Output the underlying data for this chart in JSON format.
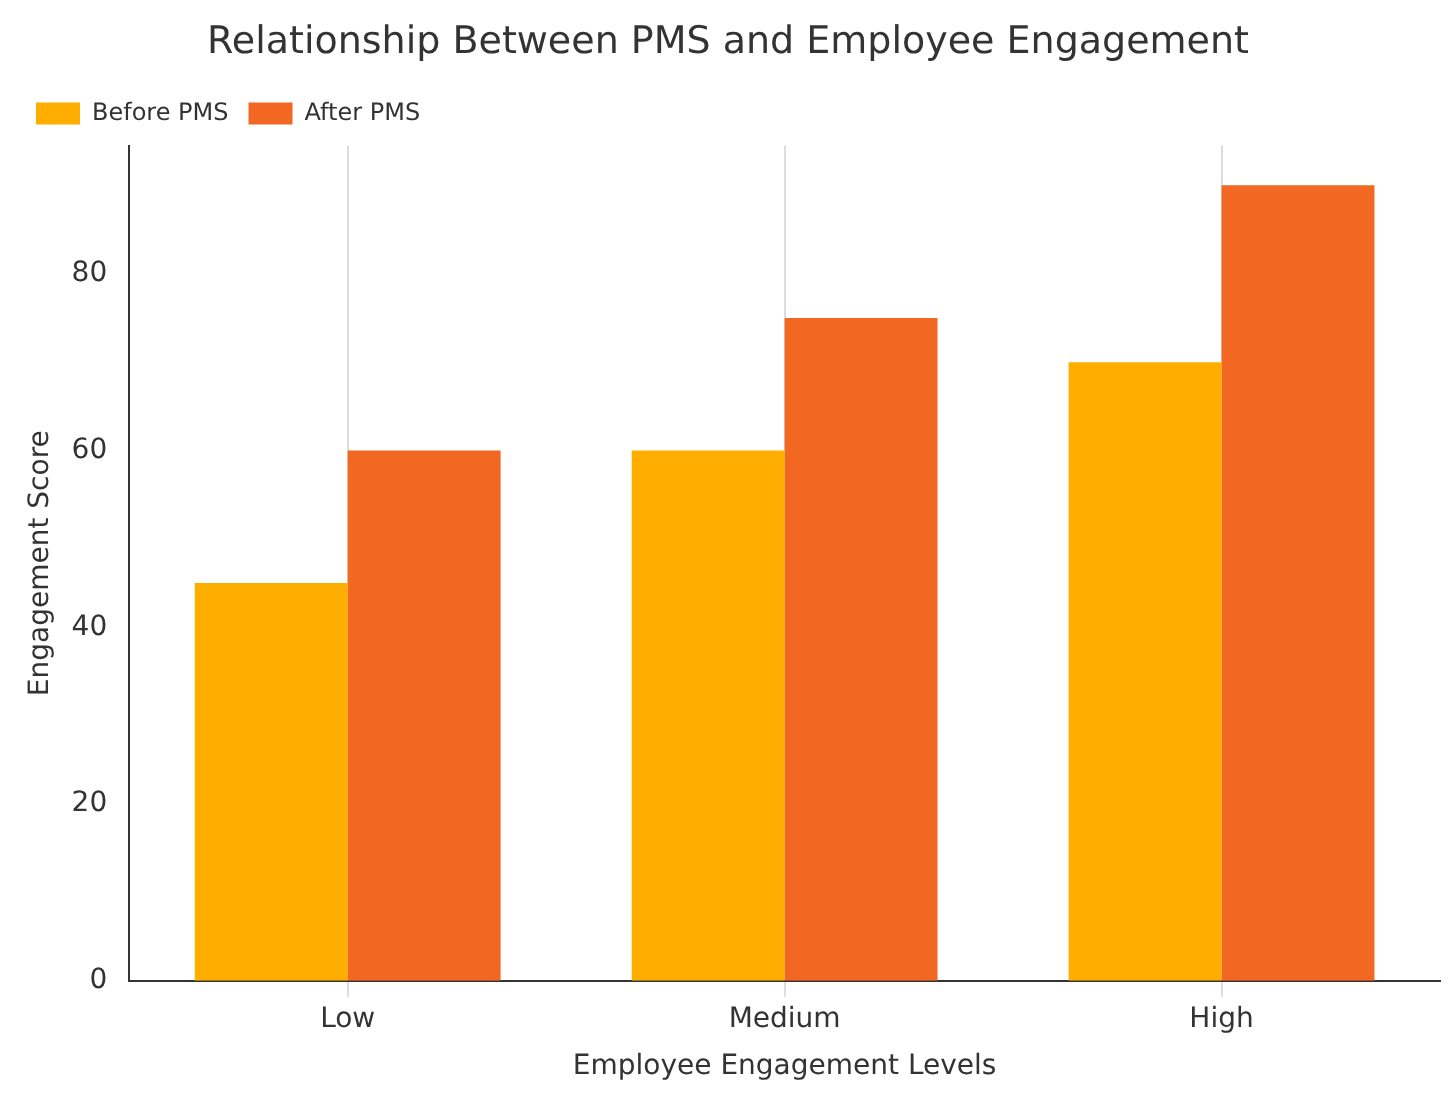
{
  "chart_data": {
    "type": "bar",
    "title": "Relationship Between PMS and Employee Engagement",
    "xlabel": "Employee Engagement Levels",
    "ylabel": "Engagement Score",
    "categories": [
      "Low",
      "Medium",
      "High"
    ],
    "series": [
      {
        "name": "Before PMS",
        "color": "#ffae00",
        "values": [
          45,
          60,
          70
        ]
      },
      {
        "name": "After PMS",
        "color": "#f26722",
        "values": [
          60,
          75,
          90
        ]
      }
    ],
    "ylim": [
      0,
      94.5
    ],
    "yticks": [
      0,
      20,
      40,
      60,
      80
    ],
    "grid": "x",
    "legend": "top left"
  }
}
